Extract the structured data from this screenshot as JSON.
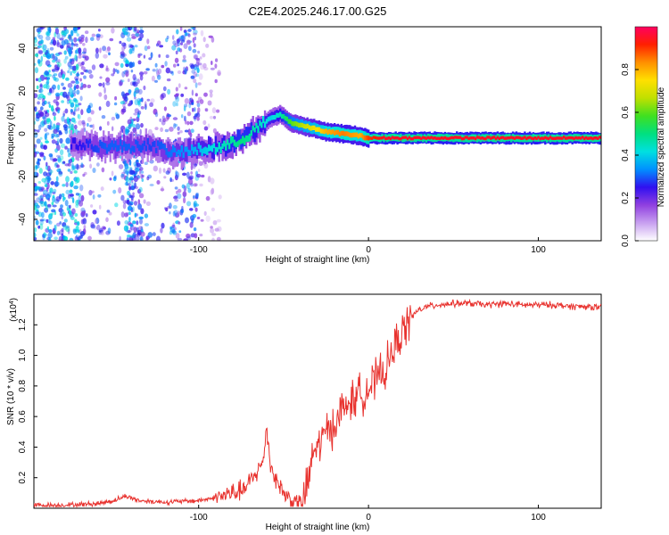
{
  "title": "C2E4.2025.246.17.00.G25",
  "chart_data": [
    {
      "type": "heatmap",
      "title": "C2E4.2025.246.17.00.G25",
      "xlabel": "Height of straight line (km)",
      "ylabel": "Frequency (Hz)",
      "xlim": [
        -197,
        137
      ],
      "ylim": [
        -50,
        50
      ],
      "x_ticks": [
        -100,
        0,
        100
      ],
      "x_tick_labels": [
        "-100",
        "0",
        "100"
      ],
      "y_ticks": [
        -40,
        -20,
        0,
        20,
        40
      ],
      "y_tick_labels": [
        "-40",
        "-20",
        "0",
        "20",
        "40"
      ],
      "colorbar": {
        "label": "Normalized spectral amplitude",
        "range": [
          0,
          1
        ],
        "ticks": [
          0.0,
          0.2,
          0.4,
          0.6,
          0.8
        ],
        "tick_labels": [
          "0.0",
          "0.2",
          "0.4",
          "0.6",
          "0.8"
        ],
        "colors": [
          "#ffffff",
          "#c8a0f0",
          "#9040e0",
          "#3010f0",
          "#0090ff",
          "#00e0e0",
          "#00e080",
          "#40e020",
          "#c0e000",
          "#ffe000",
          "#ff9000",
          "#ff2000",
          "#ff0060"
        ]
      },
      "ridge": {
        "x": [
          -170,
          -155,
          -140,
          -128,
          -115,
          -105,
          -95,
          -85,
          -75,
          -65,
          -58,
          -52,
          -45,
          -35,
          -25,
          -15,
          -5,
          0,
          10,
          30,
          60,
          90,
          120,
          137
        ],
        "freq": [
          -5,
          -6,
          -6,
          -5,
          -9,
          -8,
          -7,
          -6,
          -3,
          3,
          7,
          9,
          5,
          3,
          1,
          0,
          -1,
          -2,
          -2,
          -2,
          -2,
          -2,
          -2,
          -2
        ],
        "amplitude": [
          0.25,
          0.3,
          0.3,
          0.28,
          0.32,
          0.35,
          0.4,
          0.45,
          0.5,
          0.45,
          0.4,
          0.45,
          0.6,
          0.7,
          0.8,
          0.85,
          0.8,
          0.9,
          0.95,
          0.95,
          0.95,
          0.95,
          0.95,
          0.95
        ]
      }
    },
    {
      "type": "line",
      "xlabel": "Height of straight line (km)",
      "ylabel": "SNR (10 * v/v)",
      "y_scale_note": "(x10",
      "y_scale_exponent": "4",
      "xlim": [
        -197,
        137
      ],
      "ylim": [
        0,
        1.4
      ],
      "x_ticks": [
        -100,
        0,
        100
      ],
      "x_tick_labels": [
        "-100",
        "0",
        "100"
      ],
      "y_ticks": [
        0.2,
        0.4,
        0.6,
        0.8,
        1.0,
        1.2
      ],
      "y_tick_labels": [
        "0.2",
        "0.4",
        "0.6",
        "0.8",
        "1.0",
        "1.2"
      ],
      "series": [
        {
          "name": "SNR",
          "color": "#e8322e",
          "x": [
            -197,
            -180,
            -160,
            -150,
            -143,
            -135,
            -120,
            -100,
            -90,
            -80,
            -73,
            -68,
            -62,
            -60,
            -58,
            -55,
            -50,
            -45,
            -40,
            -37,
            -35,
            -33,
            -30,
            -25,
            -20,
            -15,
            -10,
            -5,
            0,
            5,
            10,
            15,
            20,
            25,
            30,
            35,
            40,
            50,
            60,
            70,
            80,
            90,
            100,
            110,
            120,
            130,
            137
          ],
          "y": [
            0.02,
            0.02,
            0.03,
            0.05,
            0.08,
            0.05,
            0.04,
            0.05,
            0.07,
            0.1,
            0.12,
            0.2,
            0.3,
            0.55,
            0.3,
            0.2,
            0.1,
            0.05,
            0.03,
            0.1,
            0.2,
            0.35,
            0.4,
            0.5,
            0.55,
            0.65,
            0.7,
            0.75,
            0.78,
            0.85,
            0.9,
            1.05,
            1.15,
            1.25,
            1.3,
            1.32,
            1.33,
            1.34,
            1.34,
            1.33,
            1.34,
            1.33,
            1.33,
            1.33,
            1.32,
            1.32,
            1.31
          ]
        }
      ]
    }
  ]
}
